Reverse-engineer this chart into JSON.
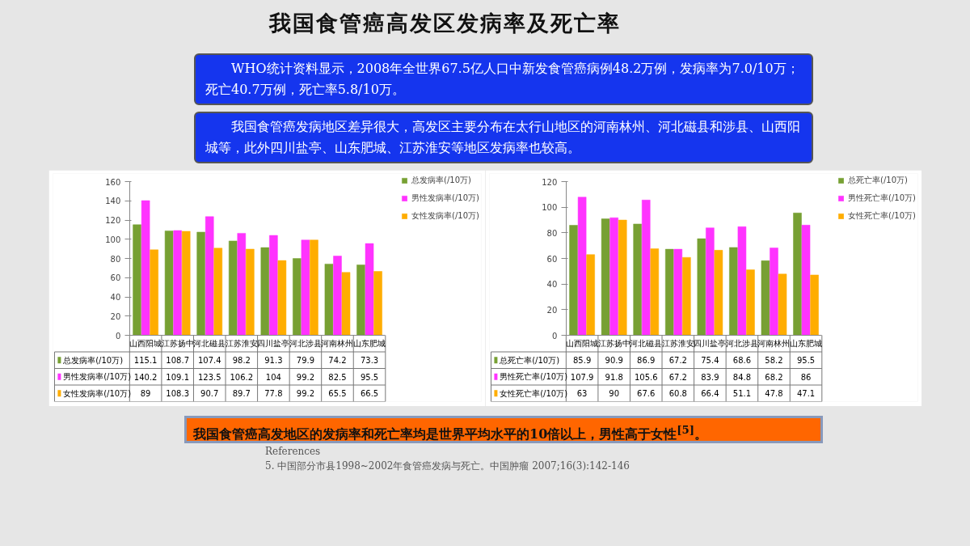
{
  "chart_data": [
    {
      "type": "bar",
      "title": "我国食管癌高发区发病率及死亡率",
      "annotations": [
        "WHO统计资料显示，2008年全世界67.5亿人口中新发食管癌病例48.2万例，发病率为7.0/10万；死亡40.7万例，死亡率5.8/10万。",
        "我国食管癌发病地区差异很大，高发区主要分布在太行山地区的河南林州、河北磁县和涉县、山西阳城等，此外四川盐亭、山东肥城、江苏淮安等地区发病率也较高。"
      ],
      "categories": [
        "山西阳城",
        "江苏扬中",
        "河北磁县",
        "江苏淮安",
        "四川盐亭",
        "河北涉县",
        "河南林州",
        "山东肥城"
      ],
      "series": [
        {
          "name": "总发病率(/10万)",
          "color": "#77a033",
          "values": [
            115.1,
            108.7,
            107.4,
            98.2,
            91.3,
            79.9,
            74.2,
            73.3
          ]
        },
        {
          "name": "男性发病率(/10万)",
          "color": "#ff33ff",
          "values": [
            140.2,
            109.1,
            123.5,
            106.2,
            104,
            99.2,
            82.5,
            95.5
          ]
        },
        {
          "name": "女性发病率(/10万)",
          "color": "#ffad00",
          "values": [
            89,
            108.3,
            90.7,
            89.7,
            77.8,
            99.2,
            65.5,
            66.5
          ]
        }
      ],
      "ylim": [
        0,
        160
      ],
      "yticks": [
        0,
        20,
        40,
        60,
        80,
        100,
        120,
        140,
        160
      ],
      "data_labels": true,
      "legend": "right"
    },
    {
      "type": "bar",
      "annotations": [
        "我国食管癌高发地区的发病率和死亡率均是世界平均水平的10倍以上，男性高于女性$^{[5]}$。",
        "References",
        "5. 中国部分市县1998~2002年食管癌发病与死亡。中国肿瘤 2007;16(3):142-146"
      ],
      "categories": [
        "山西阳城",
        "江苏扬中",
        "河北磁县",
        "江苏淮安",
        "四川盐亭",
        "河北涉县",
        "河南林州",
        "山东肥城"
      ],
      "series": [
        {
          "name": "总死亡率(/10万)",
          "color": "#77a033",
          "values": [
            85.9,
            90.9,
            86.9,
            67.2,
            75.4,
            68.6,
            58.2,
            95.5
          ]
        },
        {
          "name": "男性死亡率(/10万)",
          "color": "#ff33ff",
          "values": [
            107.9,
            91.8,
            105.6,
            67.2,
            83.9,
            84.8,
            68.2,
            86
          ]
        },
        {
          "name": "女性死亡率(/10万)",
          "color": "#ffad00",
          "values": [
            63,
            90,
            67.6,
            60.8,
            66.4,
            51.1,
            47.8,
            47.1
          ]
        }
      ],
      "ylim": [
        0,
        120
      ],
      "yticks": [
        0,
        20,
        40,
        60,
        80,
        100,
        120
      ],
      "data_labels": true,
      "legend": "right"
    }
  ]
}
